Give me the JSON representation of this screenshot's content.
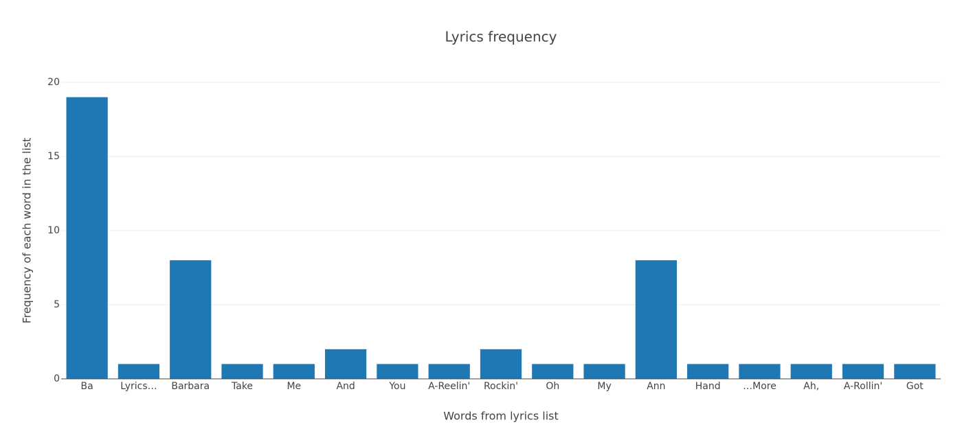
{
  "chart_data": {
    "type": "bar",
    "title": "Lyrics frequency",
    "x_label": "Words from lyrics list",
    "y_label": "Frequency of each word in the list",
    "categories": [
      "Ba",
      "Lyrics…",
      "Barbara",
      "Take",
      "Me",
      "And",
      "You",
      "A-Reelin'",
      "Rockin'",
      "Oh",
      "My",
      "Ann",
      "Hand",
      "…More",
      "Ah,",
      "A-Rollin'",
      "Got"
    ],
    "values": [
      19,
      1,
      8,
      1,
      1,
      2,
      1,
      1,
      2,
      1,
      1,
      8,
      1,
      1,
      1,
      1,
      1
    ],
    "color": "#1f77b4",
    "ylim": [
      0,
      20
    ],
    "yticks": [
      0,
      5,
      10,
      15,
      20
    ],
    "grid": true
  }
}
